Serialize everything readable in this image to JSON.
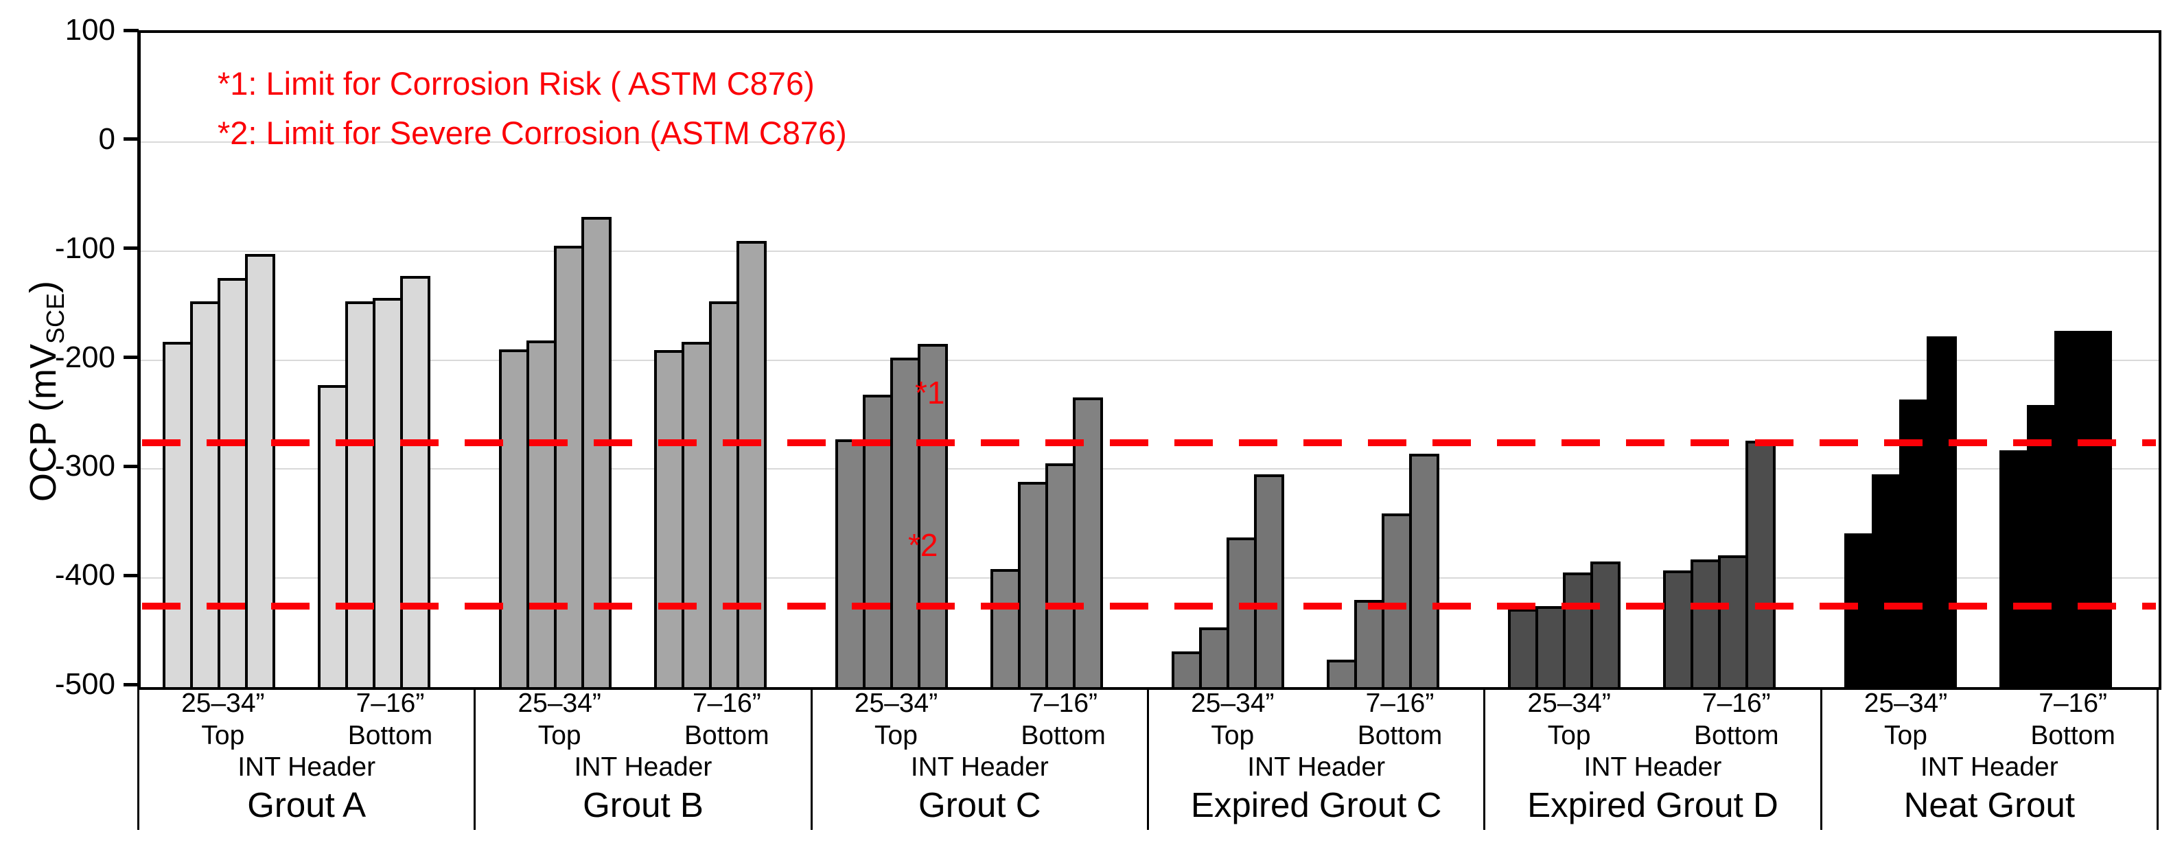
{
  "chart_data": {
    "type": "bar",
    "ylabel": {
      "prefix": "OCP (mV",
      "sub": "SCE",
      "suffix": ")"
    },
    "ylim": [
      -500,
      100
    ],
    "yticks": [
      100,
      0,
      -100,
      -200,
      -300,
      -400,
      -500
    ],
    "gridline_values": [
      0,
      -100,
      -200,
      -300,
      -400
    ],
    "grid": true,
    "annotations": [
      "*1: Limit for Corrosion Risk ( ASTM C876)",
      "*2: Limit for Severe Corrosion (ASTM C876)"
    ],
    "limit_lines": [
      {
        "label": "*1",
        "value": -276,
        "meaning": "Limit for Corrosion Risk (ASTM C876)",
        "color": "#fb0007"
      },
      {
        "label": "*2",
        "value": -426,
        "meaning": "Limit for Severe Corrosion (ASTM C876)",
        "color": "#fb0007"
      }
    ],
    "subgroup_labels": {
      "top_depth": "25–34”",
      "top_position": "Top",
      "bottom_depth": "7–16”",
      "bottom_position": "Bottom",
      "header": "INT Header"
    },
    "groups": [
      {
        "label": "Grout A",
        "color": "#d9d9d9",
        "top": [
          -183,
          -146,
          -125,
          -103
        ],
        "bottom": [
          -223,
          -146,
          -143,
          -123
        ]
      },
      {
        "label": "Grout B",
        "color": "#a6a6a6",
        "top": [
          -190,
          -182,
          -95,
          -69
        ],
        "bottom": [
          -191,
          -183,
          -146,
          -91
        ]
      },
      {
        "label": "Grout C",
        "color": "#828282",
        "top": [
          -273,
          -232,
          -198,
          -185
        ],
        "bottom": [
          -392,
          -312,
          -295,
          -234
        ]
      },
      {
        "label": "Expired Grout C",
        "color": "#757575",
        "top": [
          -467,
          -445,
          -363,
          -305
        ],
        "bottom": [
          -475,
          -420,
          -341,
          -286
        ]
      },
      {
        "label": "Expired Grout D",
        "color": "#4d4d4d",
        "top": [
          -428,
          -426,
          -395,
          -385
        ],
        "bottom": [
          -393,
          -383,
          -379,
          -274
        ]
      },
      {
        "label": "Neat Grout",
        "color": "#000000",
        "top": [
          -359,
          -305,
          -236,
          -178
        ],
        "bottom": [
          -283,
          -241,
          -173,
          -173
        ]
      }
    ]
  }
}
